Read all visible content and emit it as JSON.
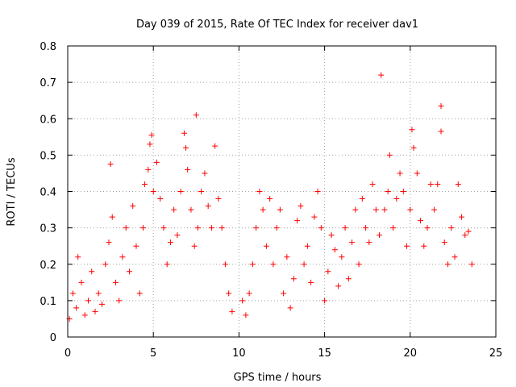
{
  "chart_data": {
    "type": "scatter",
    "title": "Day 039 of 2015, Rate Of TEC Index for receiver dav1",
    "xlabel": "GPS time / hours",
    "ylabel": "ROTI / TECUs",
    "xlim": [
      0,
      25
    ],
    "ylim": [
      0,
      0.8
    ],
    "x_ticks": [
      0,
      5,
      10,
      15,
      20,
      25
    ],
    "y_ticks": [
      0,
      0.1,
      0.2,
      0.3,
      0.4,
      0.5,
      0.6,
      0.7,
      0.8
    ],
    "grid": true,
    "marker": "+",
    "color": "#ff0000",
    "series": [
      {
        "name": "ROTI",
        "points": [
          [
            0.1,
            0.05
          ],
          [
            0.3,
            0.12
          ],
          [
            0.5,
            0.08
          ],
          [
            0.6,
            0.22
          ],
          [
            0.8,
            0.15
          ],
          [
            1.0,
            0.06
          ],
          [
            1.2,
            0.1
          ],
          [
            1.4,
            0.18
          ],
          [
            1.6,
            0.07
          ],
          [
            1.8,
            0.12
          ],
          [
            2.0,
            0.09
          ],
          [
            2.2,
            0.2
          ],
          [
            2.4,
            0.26
          ],
          [
            2.5,
            0.475
          ],
          [
            2.6,
            0.33
          ],
          [
            2.8,
            0.15
          ],
          [
            3.0,
            0.1
          ],
          [
            3.2,
            0.22
          ],
          [
            3.4,
            0.3
          ],
          [
            3.6,
            0.18
          ],
          [
            3.8,
            0.36
          ],
          [
            4.0,
            0.25
          ],
          [
            4.2,
            0.12
          ],
          [
            4.4,
            0.3
          ],
          [
            4.5,
            0.42
          ],
          [
            4.7,
            0.46
          ],
          [
            4.8,
            0.53
          ],
          [
            4.9,
            0.555
          ],
          [
            5.0,
            0.4
          ],
          [
            5.2,
            0.48
          ],
          [
            5.4,
            0.38
          ],
          [
            5.6,
            0.3
          ],
          [
            5.8,
            0.2
          ],
          [
            6.0,
            0.26
          ],
          [
            6.2,
            0.35
          ],
          [
            6.4,
            0.28
          ],
          [
            6.6,
            0.4
          ],
          [
            6.8,
            0.56
          ],
          [
            6.9,
            0.52
          ],
          [
            7.0,
            0.46
          ],
          [
            7.2,
            0.35
          ],
          [
            7.4,
            0.25
          ],
          [
            7.5,
            0.61
          ],
          [
            7.6,
            0.3
          ],
          [
            7.8,
            0.4
          ],
          [
            8.0,
            0.45
          ],
          [
            8.2,
            0.36
          ],
          [
            8.4,
            0.3
          ],
          [
            8.6,
            0.525
          ],
          [
            8.8,
            0.38
          ],
          [
            9.0,
            0.3
          ],
          [
            9.2,
            0.2
          ],
          [
            9.4,
            0.12
          ],
          [
            9.6,
            0.07
          ],
          [
            10.2,
            0.1
          ],
          [
            10.4,
            0.06
          ],
          [
            10.6,
            0.12
          ],
          [
            10.8,
            0.2
          ],
          [
            11.0,
            0.3
          ],
          [
            11.2,
            0.4
          ],
          [
            11.4,
            0.35
          ],
          [
            11.6,
            0.25
          ],
          [
            11.8,
            0.38
          ],
          [
            12.0,
            0.2
          ],
          [
            12.2,
            0.3
          ],
          [
            12.4,
            0.35
          ],
          [
            12.6,
            0.12
          ],
          [
            12.8,
            0.22
          ],
          [
            13.0,
            0.08
          ],
          [
            13.2,
            0.16
          ],
          [
            13.4,
            0.32
          ],
          [
            13.6,
            0.36
          ],
          [
            13.8,
            0.2
          ],
          [
            14.0,
            0.25
          ],
          [
            14.2,
            0.15
          ],
          [
            14.4,
            0.33
          ],
          [
            14.6,
            0.4
          ],
          [
            14.8,
            0.3
          ],
          [
            15.0,
            0.1
          ],
          [
            15.2,
            0.18
          ],
          [
            15.4,
            0.28
          ],
          [
            15.6,
            0.24
          ],
          [
            15.8,
            0.14
          ],
          [
            16.0,
            0.22
          ],
          [
            16.2,
            0.3
          ],
          [
            16.4,
            0.16
          ],
          [
            16.6,
            0.26
          ],
          [
            16.8,
            0.35
          ],
          [
            17.0,
            0.2
          ],
          [
            17.2,
            0.38
          ],
          [
            17.4,
            0.3
          ],
          [
            17.6,
            0.26
          ],
          [
            17.8,
            0.42
          ],
          [
            18.0,
            0.35
          ],
          [
            18.2,
            0.28
          ],
          [
            18.3,
            0.72
          ],
          [
            18.5,
            0.35
          ],
          [
            18.7,
            0.4
          ],
          [
            18.8,
            0.5
          ],
          [
            19.0,
            0.3
          ],
          [
            19.2,
            0.38
          ],
          [
            19.4,
            0.45
          ],
          [
            19.6,
            0.4
          ],
          [
            19.8,
            0.25
          ],
          [
            20.0,
            0.35
          ],
          [
            20.1,
            0.57
          ],
          [
            20.2,
            0.52
          ],
          [
            20.4,
            0.45
          ],
          [
            20.6,
            0.32
          ],
          [
            20.8,
            0.25
          ],
          [
            21.0,
            0.3
          ],
          [
            21.2,
            0.42
          ],
          [
            21.4,
            0.35
          ],
          [
            21.6,
            0.42
          ],
          [
            21.8,
            0.635
          ],
          [
            21.8,
            0.565
          ],
          [
            22.0,
            0.26
          ],
          [
            22.2,
            0.2
          ],
          [
            22.4,
            0.3
          ],
          [
            22.6,
            0.22
          ],
          [
            22.8,
            0.42
          ],
          [
            23.0,
            0.33
          ],
          [
            23.2,
            0.28
          ],
          [
            23.4,
            0.29
          ],
          [
            23.6,
            0.2
          ]
        ]
      }
    ]
  }
}
